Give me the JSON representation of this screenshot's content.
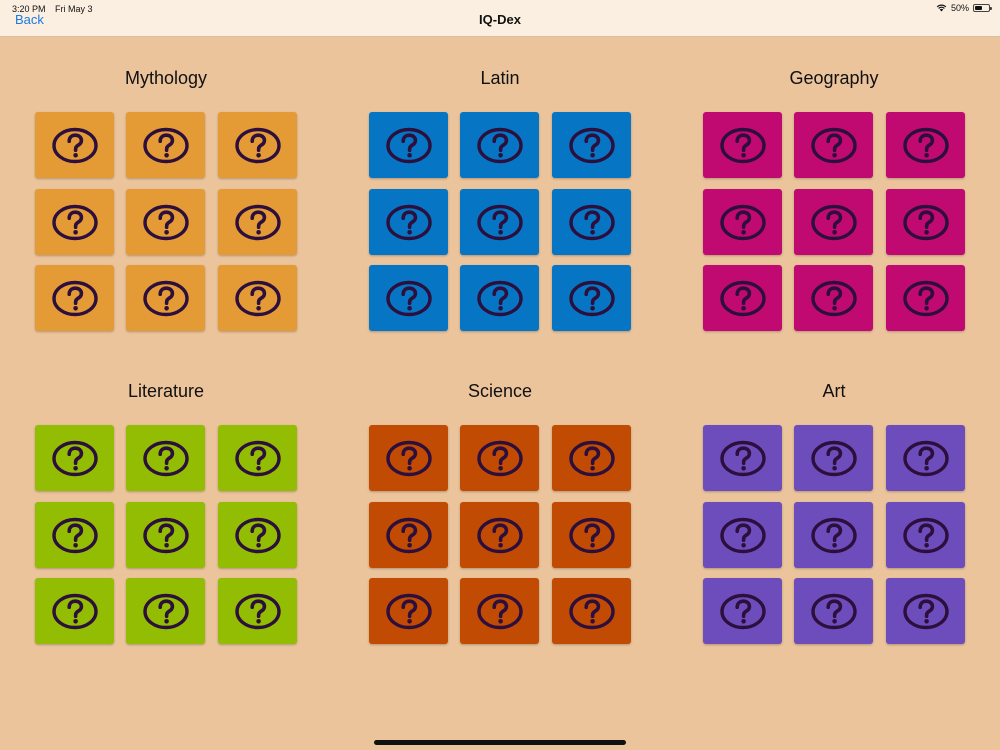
{
  "status": {
    "time": "3:20 PM",
    "date": "Fri May 3",
    "battery": "50%",
    "battery_level": 0.5
  },
  "nav": {
    "back_label": "Back",
    "title": "IQ-Dex"
  },
  "categories": [
    {
      "name": "Mythology",
      "color": "#e49b36"
    },
    {
      "name": "Latin",
      "color": "#0675c3"
    },
    {
      "name": "Geography",
      "color": "#c00a72"
    },
    {
      "name": "Literature",
      "color": "#92bd02"
    },
    {
      "name": "Science",
      "color": "#c14b02"
    },
    {
      "name": "Art",
      "color": "#6d4dbb"
    }
  ],
  "tile_icon": "question-circle-icon",
  "icon_color": "#2c0f3c"
}
